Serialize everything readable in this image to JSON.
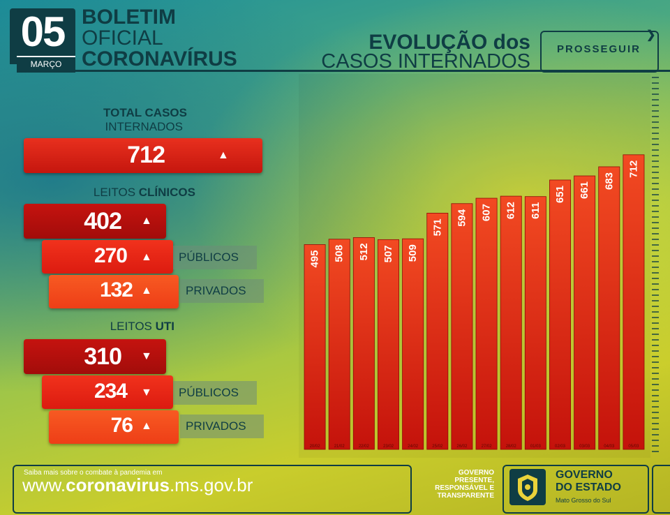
{
  "header": {
    "day": "05",
    "month": "MARÇO",
    "title_line1": "BOLETIM",
    "title_line2": "OFICIAL",
    "title_line3": "CORONAVÍRUS",
    "chart_title_line1": "EVOLUÇÃO dos",
    "chart_title_line2": "CASOS INTERNADOS",
    "brand": "PROSSEGUIR"
  },
  "summary": {
    "total_label_bold": "TOTAL CASOS",
    "total_label": "INTERNADOS",
    "total_value": "712",
    "clinicos_label": "LEITOS",
    "clinicos_label_bold": "CLÍNICOS",
    "clinicos_total": "402",
    "clinicos_publicos": "270",
    "clinicos_privados": "132",
    "uti_label": "LEITOS",
    "uti_label_bold": "UTI",
    "uti_total": "310",
    "uti_publicos": "234",
    "uti_privados": "76",
    "publicos_tag": "PÚBLICOS",
    "privados_tag": "PRIVADOS",
    "up_arrow": "▲",
    "down_arrow": "▼"
  },
  "footer": {
    "small_text": "Saiba mais sobre o combate à pandemia em",
    "url_prefix": "www.",
    "url_bold": "coronavirus",
    "url_suffix": ".ms.gov.br",
    "slogan1": "GOVERNO",
    "slogan2": "PRESENTE,",
    "slogan3": "RESPONSÁVEL E",
    "slogan4": "TRANSPARENTE",
    "gov1": "GOVERNO",
    "gov2": "DO ESTADO",
    "gov3": "Mato Grosso do Sul"
  },
  "colors": {
    "dark": "#0f3d44",
    "bar_top": "#f03a1c",
    "bar_bottom": "#c8140c",
    "box_dark_red": "#b5100e",
    "box_red": "#e8251a",
    "box_orange": "#f24a1e"
  },
  "chart_data": {
    "type": "bar",
    "categories": [
      "20/02",
      "21/02",
      "22/02",
      "23/02",
      "24/02",
      "25/02",
      "26/02",
      "27/02",
      "28/02",
      "01/03",
      "02/03",
      "03/03",
      "04/03",
      "05/03"
    ],
    "values": [
      495,
      508,
      512,
      507,
      509,
      571,
      594,
      607,
      612,
      611,
      651,
      661,
      683,
      712
    ],
    "title": "EVOLUÇÃO dos CASOS INTERNADOS",
    "xlabel": "",
    "ylabel": "",
    "ylim": [
      0,
      730
    ],
    "grid": false,
    "legend": "none"
  }
}
